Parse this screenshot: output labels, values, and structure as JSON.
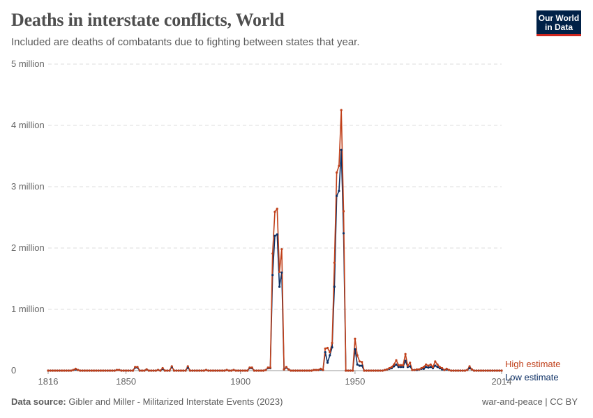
{
  "header": {
    "title": "Deaths in interstate conflicts, World",
    "subtitle": "Included are deaths of combatants due to fighting between states that year.",
    "logo": {
      "line1": "Our World",
      "line2": "in Data"
    }
  },
  "footer": {
    "source_label": "Data source:",
    "source_text": "Gibler and Miller - Militarized Interstate Events (2023)",
    "license": "war-and-peace | CC BY"
  },
  "colors": {
    "high": "#c0401a",
    "low": "#0b2e63",
    "grid": "#dddddd",
    "axis": "#999999"
  },
  "chart_data": {
    "type": "line",
    "title": "Deaths in interstate conflicts, World",
    "xlim": [
      1816,
      2014
    ],
    "ylim": [
      0,
      5
    ],
    "y_unit": "million",
    "grid": "horizontal dashed",
    "legend_placement": "right (inline labels)",
    "x_ticks": [
      {
        "value": 1816,
        "label": "1816"
      },
      {
        "value": 1850,
        "label": "1850"
      },
      {
        "value": 1900,
        "label": "1900"
      },
      {
        "value": 1950,
        "label": "1950"
      },
      {
        "value": 2014,
        "label": "2014"
      }
    ],
    "y_ticks": [
      {
        "value": 0,
        "label": "0"
      },
      {
        "value": 1,
        "label": "1 million"
      },
      {
        "value": 2,
        "label": "2 million"
      },
      {
        "value": 3,
        "label": "3 million"
      },
      {
        "value": 4,
        "label": "4 million"
      },
      {
        "value": 5,
        "label": "5 million"
      }
    ],
    "x_start_year": 1816,
    "series": [
      {
        "name": "High estimate",
        "color": "#c0401a",
        "values": [
          0,
          0,
          0,
          0,
          0,
          0,
          0,
          0,
          0,
          0,
          0,
          0.01,
          0.03,
          0.01,
          0,
          0,
          0,
          0,
          0,
          0,
          0,
          0,
          0,
          0,
          0,
          0,
          0,
          0,
          0,
          0,
          0.01,
          0.01,
          0,
          0,
          0,
          0,
          0,
          0,
          0.06,
          0.06,
          0,
          0,
          0,
          0.02,
          0,
          0,
          0,
          0,
          0.01,
          0,
          0.04,
          0,
          0,
          0,
          0.07,
          0,
          0,
          0,
          0,
          0,
          0,
          0.07,
          0,
          0,
          0,
          0,
          0,
          0,
          0,
          0.01,
          0,
          0,
          0,
          0,
          0,
          0,
          0,
          0,
          0.01,
          0,
          0,
          0.01,
          0,
          0,
          0,
          0,
          0,
          0,
          0.05,
          0.05,
          0,
          0,
          0,
          0,
          0,
          0.01,
          0.05,
          0.05,
          1.91,
          2.59,
          2.64,
          1.61,
          1.98,
          0.02,
          0.06,
          0.02,
          0,
          0,
          0,
          0,
          0,
          0,
          0,
          0,
          0,
          0,
          0.01,
          0.01,
          0.01,
          0.03,
          0.01,
          0.36,
          0.37,
          0.3,
          0.45,
          1.76,
          3.23,
          3.34,
          4.25,
          2.6,
          0,
          0,
          0,
          0,
          0.52,
          0.25,
          0.15,
          0.14,
          0,
          0,
          0,
          0,
          0,
          0,
          0,
          0,
          0,
          0.01,
          0.02,
          0.04,
          0.06,
          0.1,
          0.17,
          0.09,
          0.09,
          0.09,
          0.27,
          0.08,
          0.13,
          0.01,
          0.01,
          0.02,
          0.02,
          0.04,
          0.06,
          0.1,
          0.08,
          0.1,
          0.06,
          0.15,
          0.1,
          0.06,
          0.04,
          0.01,
          0.03,
          0.01,
          0,
          0,
          0,
          0,
          0,
          0,
          0,
          0.01,
          0.07,
          0.02,
          0,
          0,
          0,
          0,
          0,
          0,
          0,
          0,
          0,
          0,
          0,
          0,
          0
        ]
      },
      {
        "name": "Low estimate",
        "color": "#0b2e63",
        "values": [
          0,
          0,
          0,
          0,
          0,
          0,
          0,
          0,
          0,
          0,
          0,
          0.01,
          0.02,
          0.01,
          0,
          0,
          0,
          0,
          0,
          0,
          0,
          0,
          0,
          0,
          0,
          0,
          0,
          0,
          0,
          0,
          0.01,
          0.01,
          0,
          0,
          0,
          0,
          0,
          0,
          0.05,
          0.05,
          0,
          0,
          0,
          0.02,
          0,
          0,
          0,
          0,
          0.01,
          0,
          0.03,
          0,
          0,
          0,
          0.06,
          0,
          0,
          0,
          0,
          0,
          0,
          0.05,
          0,
          0,
          0,
          0,
          0,
          0,
          0,
          0.01,
          0,
          0,
          0,
          0,
          0,
          0,
          0,
          0,
          0.01,
          0,
          0,
          0.01,
          0,
          0,
          0,
          0,
          0,
          0,
          0.04,
          0.04,
          0,
          0,
          0,
          0,
          0,
          0.01,
          0.04,
          0.04,
          1.56,
          2.2,
          2.22,
          1.37,
          1.6,
          0.02,
          0.05,
          0.02,
          0,
          0,
          0,
          0,
          0,
          0,
          0,
          0,
          0,
          0,
          0.01,
          0.01,
          0.01,
          0.02,
          0.01,
          0.3,
          0.13,
          0.25,
          0.38,
          1.37,
          2.85,
          2.93,
          3.6,
          2.24,
          0,
          0,
          0,
          0,
          0.35,
          0.1,
          0.08,
          0.08,
          0,
          0,
          0,
          0,
          0,
          0,
          0,
          0,
          0,
          0.01,
          0.02,
          0.03,
          0.04,
          0.07,
          0.1,
          0.06,
          0.06,
          0.06,
          0.16,
          0.06,
          0.07,
          0.01,
          0.01,
          0.01,
          0.02,
          0.03,
          0.03,
          0.06,
          0.05,
          0.06,
          0.04,
          0.08,
          0.06,
          0.04,
          0.02,
          0.01,
          0.02,
          0.01,
          0,
          0,
          0,
          0,
          0,
          0,
          0,
          0.01,
          0.04,
          0.02,
          0,
          0,
          0,
          0,
          0,
          0,
          0,
          0,
          0,
          0,
          0,
          0,
          0
        ]
      }
    ]
  }
}
